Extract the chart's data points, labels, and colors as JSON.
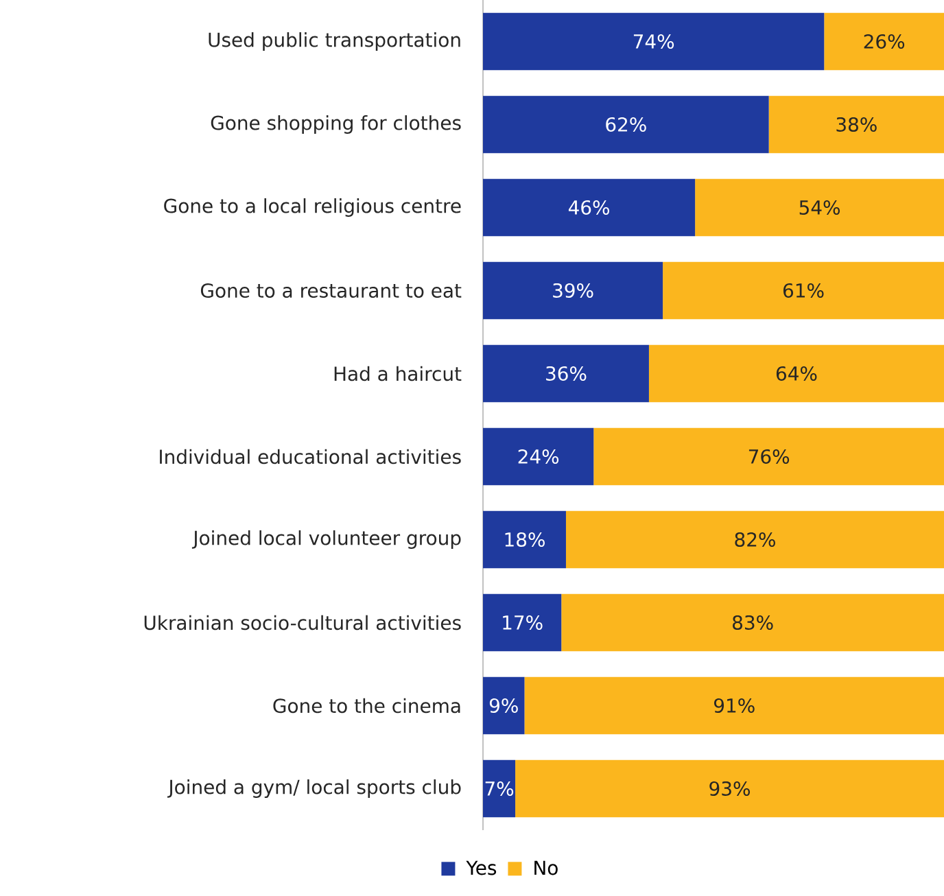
{
  "chart_data": {
    "type": "bar",
    "orientation": "horizontal",
    "stacked": true,
    "legend": "bottom",
    "categories": [
      "Used public transportation",
      "Gone shopping for clothes",
      "Gone to a local religious centre",
      "Gone to a restaurant to eat",
      "Had a haircut",
      "Individual educational activities",
      "Joined local volunteer group",
      "Ukrainian socio-cultural activities",
      "Gone to the cinema",
      "Joined a gym/ local sports club"
    ],
    "series": [
      {
        "name": "Yes",
        "color": "#1f3a9e",
        "values": [
          74,
          62,
          46,
          39,
          36,
          24,
          18,
          17,
          9,
          7
        ],
        "value_labels": [
          "74%",
          "62%",
          "46%",
          "39%",
          "36%",
          "24%",
          "18%",
          "17%",
          "9%",
          "7%"
        ]
      },
      {
        "name": "No",
        "color": "#fbb61e",
        "values": [
          26,
          38,
          54,
          61,
          64,
          76,
          82,
          83,
          91,
          93
        ],
        "value_labels": [
          "26%",
          "38%",
          "54%",
          "61%",
          "64%",
          "76%",
          "82%",
          "83%",
          "91%",
          "93%"
        ]
      }
    ]
  }
}
